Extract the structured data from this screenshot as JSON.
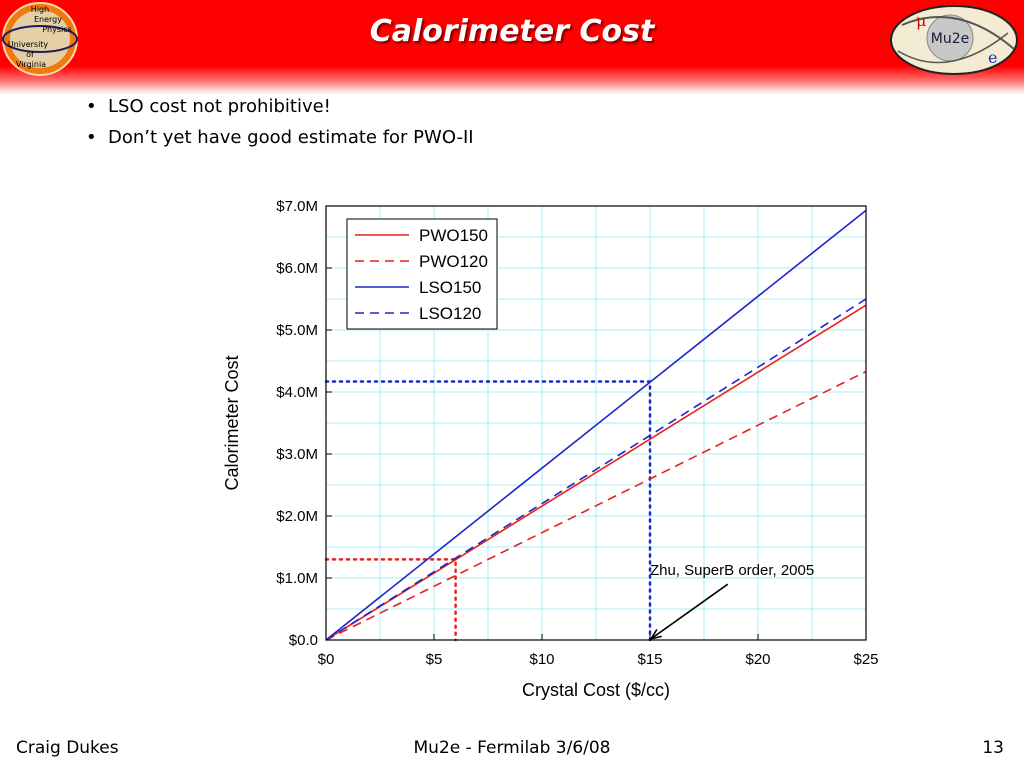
{
  "slide": {
    "title": "Calorimeter Cost",
    "bullets": [
      "LSO cost not prohibitive!",
      "Don’t yet have good estimate for PWO-II"
    ]
  },
  "logos": {
    "left": {
      "lines": [
        "High",
        "Energy",
        "Physics",
        "University",
        "of",
        "Virginia"
      ]
    },
    "right": {
      "text": "Mu2e",
      "mu_symbol": "μ",
      "e_symbol": "e"
    }
  },
  "footer": {
    "left": "Craig Dukes",
    "center": "Mu2e - Fermilab 3/6/08",
    "right": "13"
  },
  "colors": {
    "header_red": "#ff0000",
    "pwo": "#e8211c",
    "lso": "#1c27c8",
    "grid": "#a8eef5"
  },
  "chart_data": {
    "type": "line",
    "xlabel": "Crystal Cost ($/cc)",
    "ylabel": "Calorimeter Cost",
    "xlim": [
      0,
      25
    ],
    "ylim": [
      0,
      7
    ],
    "x_ticks": [
      0,
      5,
      10,
      15,
      20,
      25
    ],
    "x_tick_labels": [
      "$0",
      "$5",
      "$10",
      "$15",
      "$20",
      "$25"
    ],
    "y_ticks": [
      0,
      1,
      2,
      3,
      4,
      5,
      6,
      7
    ],
    "y_tick_labels": [
      "$0.0",
      "$1.0M",
      "$2.0M",
      "$3.0M",
      "$4.0M",
      "$5.0M",
      "$6.0M",
      "$7.0M"
    ],
    "grid": true,
    "legend_position": "top-left",
    "series": [
      {
        "name": "PWO150",
        "color": "#e8211c",
        "dash": "solid",
        "x": [
          0,
          25
        ],
        "y": [
          0,
          5.4
        ]
      },
      {
        "name": "PWO120",
        "color": "#e8211c",
        "dash": "dashed",
        "x": [
          0,
          25
        ],
        "y": [
          0,
          4.33
        ]
      },
      {
        "name": "LSO150",
        "color": "#1c27c8",
        "dash": "solid",
        "x": [
          0,
          25
        ],
        "y": [
          0,
          6.93
        ]
      },
      {
        "name": "LSO120",
        "color": "#1c27c8",
        "dash": "dashed",
        "x": [
          0,
          25
        ],
        "y": [
          0,
          5.5
        ]
      }
    ],
    "reference_lines": [
      {
        "color": "#e8211c",
        "x": [
          0,
          6,
          6
        ],
        "y": [
          1.3,
          1.3,
          0
        ]
      },
      {
        "color": "#1c27c8",
        "x": [
          0,
          15,
          15
        ],
        "y": [
          4.17,
          4.17,
          0
        ]
      }
    ],
    "annotation": {
      "text": "Zhu, SuperB order, 2005",
      "x": 18.8,
      "y": 1.05,
      "arrow_from": [
        18.6,
        0.9
      ],
      "arrow_to": [
        15.05,
        0.02
      ]
    }
  }
}
